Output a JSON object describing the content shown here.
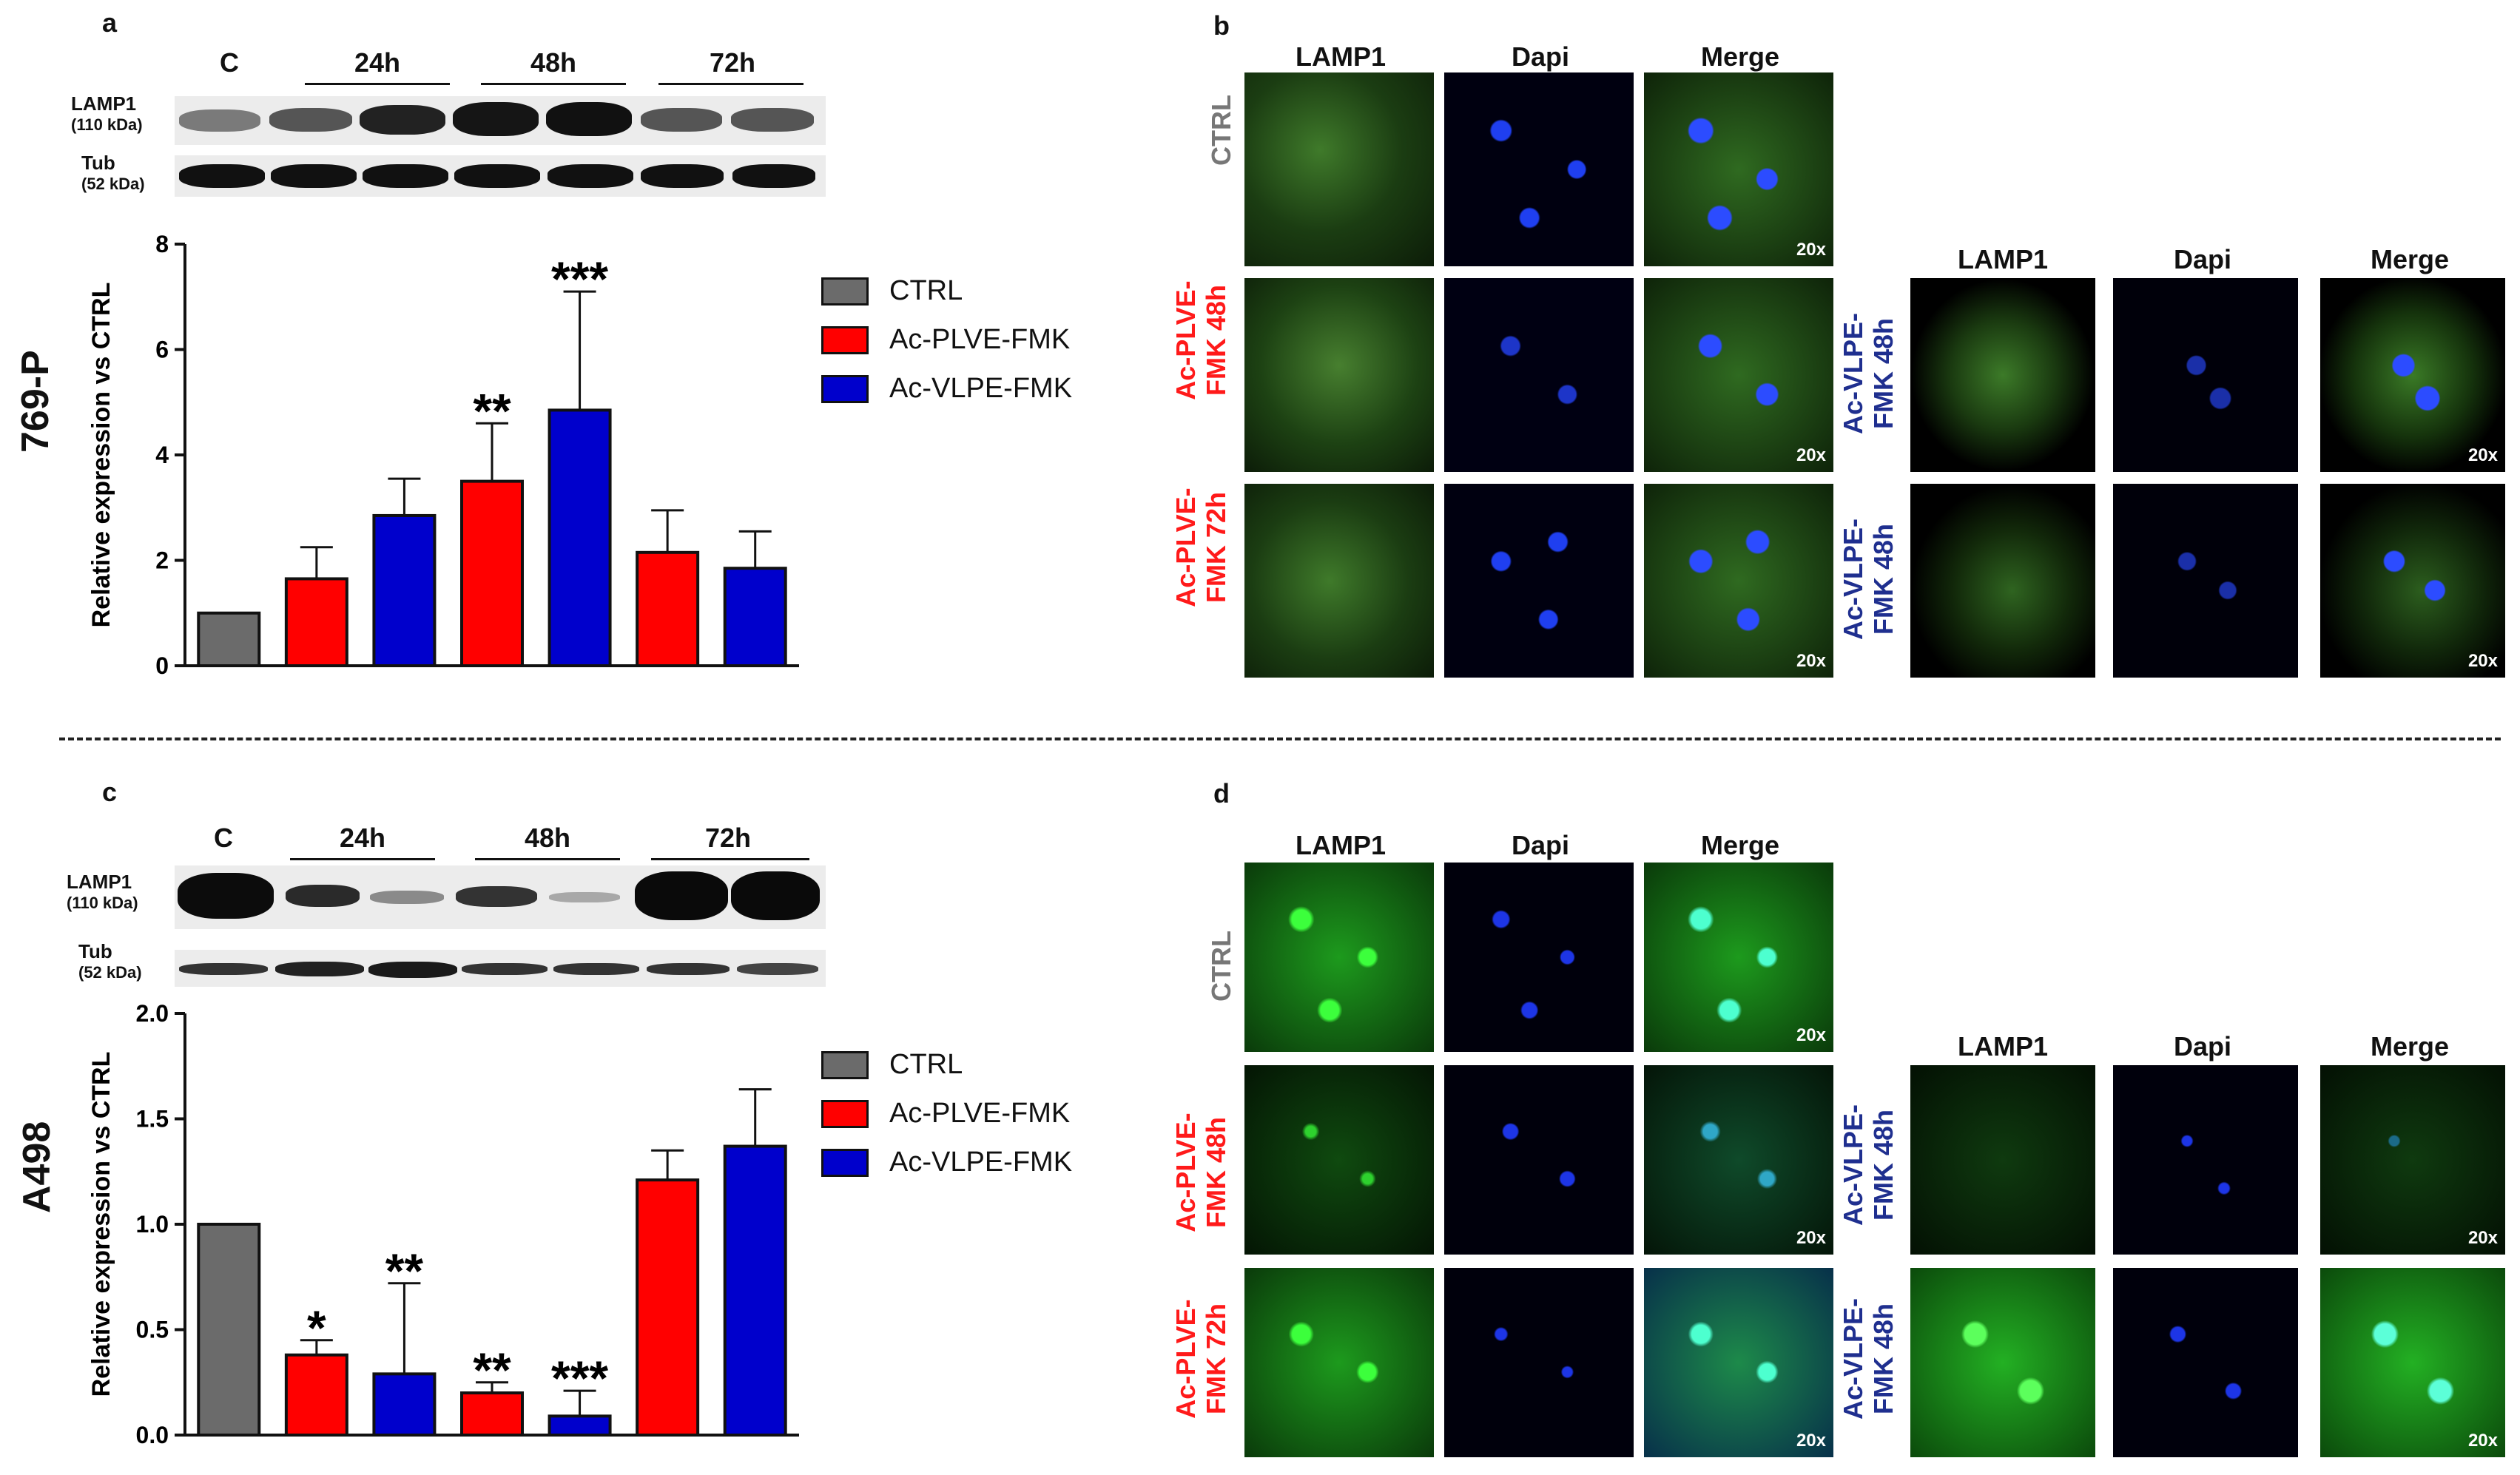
{
  "panels": {
    "a": {
      "label": "a",
      "row_label": "769-P",
      "lanes": [
        "C",
        "24h",
        "48h",
        "72h"
      ],
      "blot_labels": [
        {
          "name": "LAMP1",
          "kda": "(110 kDa)"
        },
        {
          "name": "Tub",
          "kda": "(52 kDa)"
        }
      ]
    },
    "b": {
      "label": "b",
      "col_heads": [
        "LAMP1",
        "Dapi",
        "Merge"
      ],
      "rows_left": [
        "CTRL",
        "Ac-PLVE-\nFMK 48h",
        "Ac-PLVE-\nFMK 72h"
      ],
      "rows_right": [
        "Ac-VLPE-\nFMK 48h",
        "Ac-VLPE-\nFMK 48h"
      ],
      "zoom": "20x"
    },
    "c": {
      "label": "c",
      "row_label": "A498",
      "lanes": [
        "C",
        "24h",
        "48h",
        "72h"
      ],
      "blot_labels": [
        {
          "name": "LAMP1",
          "kda": "(110 kDa)"
        },
        {
          "name": "Tub",
          "kda": "(52 kDa)"
        }
      ]
    },
    "d": {
      "label": "d",
      "col_heads": [
        "LAMP1",
        "Dapi",
        "Merge"
      ],
      "rows_left": [
        "CTRL",
        "Ac-PLVE-\nFMK 48h",
        "Ac-PLVE-\nFMK 72h"
      ],
      "rows_right": [
        "Ac-VLPE-\nFMK 48h",
        "Ac-VLPE-\nFMK 48h"
      ],
      "zoom": "20x"
    }
  },
  "legend": [
    {
      "label": "CTRL",
      "color": "#6b6b6b"
    },
    {
      "label": "Ac-PLVE-FMK",
      "color": "#ff0000"
    },
    {
      "label": "Ac-VLPE-FMK",
      "color": "#0000cc"
    }
  ],
  "colors": {
    "row_red": "#ff1a1a",
    "row_blue": "#1f2f8f",
    "row_gray": "#777777"
  },
  "chart_data": [
    {
      "type": "bar",
      "ylabel": "Relative expression vs CTRL",
      "ylim": [
        0,
        8
      ],
      "yticks": [
        0,
        2,
        4,
        6,
        8
      ],
      "ytick_labels": [
        "0",
        "2",
        "4",
        "6",
        "8"
      ],
      "bars": [
        {
          "series": "CTRL",
          "value": 1.0,
          "error": 0,
          "sig": ""
        },
        {
          "series": "Ac-PLVE-FMK",
          "value": 1.65,
          "error": 0.6,
          "sig": ""
        },
        {
          "series": "Ac-VLPE-FMK",
          "value": 2.85,
          "error": 0.7,
          "sig": ""
        },
        {
          "series": "Ac-PLVE-FMK",
          "value": 3.5,
          "error": 1.1,
          "sig": "**"
        },
        {
          "series": "Ac-VLPE-FMK",
          "value": 4.85,
          "error": 2.25,
          "sig": "***"
        },
        {
          "series": "Ac-PLVE-FMK",
          "value": 2.15,
          "error": 0.8,
          "sig": ""
        },
        {
          "series": "Ac-VLPE-FMK",
          "value": 1.85,
          "error": 0.7,
          "sig": ""
        }
      ]
    },
    {
      "type": "bar",
      "ylabel": "Relative expression vs CTRL",
      "ylim": [
        0,
        2.0
      ],
      "yticks": [
        0,
        0.5,
        1.0,
        1.5,
        2.0
      ],
      "ytick_labels": [
        "0.0",
        "0.5",
        "1.0",
        "1.5",
        "2.0"
      ],
      "bars": [
        {
          "series": "CTRL",
          "value": 1.0,
          "error": 0,
          "sig": ""
        },
        {
          "series": "Ac-PLVE-FMK",
          "value": 0.38,
          "error": 0.07,
          "sig": "*"
        },
        {
          "series": "Ac-VLPE-FMK",
          "value": 0.29,
          "error": 0.43,
          "sig": "**"
        },
        {
          "series": "Ac-PLVE-FMK",
          "value": 0.2,
          "error": 0.05,
          "sig": "**"
        },
        {
          "series": "Ac-VLPE-FMK",
          "value": 0.09,
          "error": 0.12,
          "sig": "***"
        },
        {
          "series": "Ac-PLVE-FMK",
          "value": 1.21,
          "error": 0.14,
          "sig": ""
        },
        {
          "series": "Ac-VLPE-FMK",
          "value": 1.37,
          "error": 0.27,
          "sig": ""
        }
      ]
    }
  ]
}
